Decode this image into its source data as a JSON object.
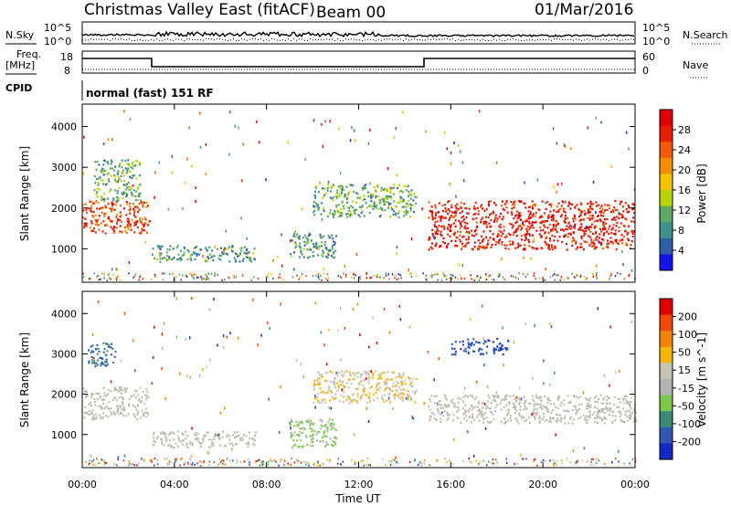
{
  "header": {
    "title": "Christmas Valley East (fitACF)",
    "beam": "Beam 00",
    "date": "01/Mar/2016"
  },
  "noise_panel": {
    "left_label": "N.Sky",
    "left_ticks": [
      "10^5",
      "10^0"
    ],
    "right_label": "N.Search",
    "right_ticks": [
      "10^5",
      "10^0"
    ]
  },
  "freq_panel": {
    "left_label": "Freq.",
    "left_unit": "[MHz]",
    "left_ticks": [
      "18",
      "8"
    ],
    "right_label": "Nave",
    "right_ticks": [
      "60",
      "0"
    ]
  },
  "cpid": {
    "label": "CPID",
    "value": "normal (fast) 151 RF"
  },
  "colors": {
    "power_scale": [
      "#1414e6",
      "#2f5fa8",
      "#3f8f8f",
      "#5fa85f",
      "#b8d400",
      "#f5c400",
      "#f58c00",
      "#f55a00",
      "#e61e00",
      "#e00000"
    ],
    "velocity_scale": [
      "#1428c8",
      "#2e58b4",
      "#3a8a76",
      "#7cc84a",
      "#b4b4b4",
      "#c8c4b4",
      "#f5b400",
      "#f58200",
      "#f04a00",
      "#e00000"
    ],
    "ground_scatter": "#bdbdb0"
  },
  "chart_data": [
    {
      "type": "heatmap",
      "name": "power",
      "xlabel": "",
      "ylabel": "Slant Range [km]",
      "xlim": [
        "00:00",
        "24:00"
      ],
      "ylim": [
        180,
        4550
      ],
      "y_ticks": [
        1000,
        2000,
        3000,
        4000
      ],
      "colorbar": {
        "label": "Power [dB]",
        "ticks": [
          "28",
          "24",
          "20",
          "16",
          "12",
          "8",
          "4"
        ],
        "range": [
          0,
          30
        ]
      },
      "scatter_regions": [
        {
          "t_start": 0.0,
          "t_end": 2.9,
          "range_low": 1400,
          "range_high": 2200,
          "level": 24
        },
        {
          "t_start": 0.5,
          "t_end": 2.5,
          "range_low": 2200,
          "range_high": 3200,
          "level": 10
        },
        {
          "t_start": 3.0,
          "t_end": 7.5,
          "range_low": 700,
          "range_high": 1100,
          "level": 8
        },
        {
          "t_start": 9.0,
          "t_end": 11.0,
          "range_low": 800,
          "range_high": 1400,
          "level": 8
        },
        {
          "t_start": 10.0,
          "t_end": 14.5,
          "range_low": 1800,
          "range_high": 2600,
          "level": 10
        },
        {
          "t_start": 15.0,
          "t_end": 24.0,
          "range_low": 1000,
          "range_high": 2200,
          "level": 27
        }
      ]
    },
    {
      "type": "heatmap",
      "name": "velocity",
      "xlabel": "Time UT",
      "ylabel": "Slant Range [km]",
      "x_ticks": [
        "00:00",
        "04:00",
        "08:00",
        "12:00",
        "16:00",
        "20:00",
        "00:00"
      ],
      "ylim": [
        180,
        4550
      ],
      "y_ticks": [
        1000,
        2000,
        3000,
        4000
      ],
      "colorbar": {
        "label": "Velocity [m s^-1]",
        "ticks": [
          "200",
          "100",
          "50",
          "15",
          "-15",
          "-50",
          "-100",
          "-200"
        ],
        "range": [
          -250,
          250
        ]
      },
      "scatter_regions": [
        {
          "t_start": 0.0,
          "t_end": 2.9,
          "range_low": 1400,
          "range_high": 2200,
          "level": 0
        },
        {
          "t_start": 0.2,
          "t_end": 1.5,
          "range_low": 2700,
          "range_high": 3300,
          "level": -150
        },
        {
          "t_start": 3.0,
          "t_end": 7.5,
          "range_low": 700,
          "range_high": 1100,
          "level": 0
        },
        {
          "t_start": 9.0,
          "t_end": 11.0,
          "range_low": 700,
          "range_high": 1400,
          "level": -60
        },
        {
          "t_start": 10.0,
          "t_end": 14.5,
          "range_low": 1800,
          "range_high": 2600,
          "level": 40
        },
        {
          "t_start": 15.0,
          "t_end": 24.0,
          "range_low": 1300,
          "range_high": 2000,
          "level": 0
        },
        {
          "t_start": 16.0,
          "t_end": 18.5,
          "range_low": 3000,
          "range_high": 3400,
          "level": -180
        }
      ]
    }
  ]
}
